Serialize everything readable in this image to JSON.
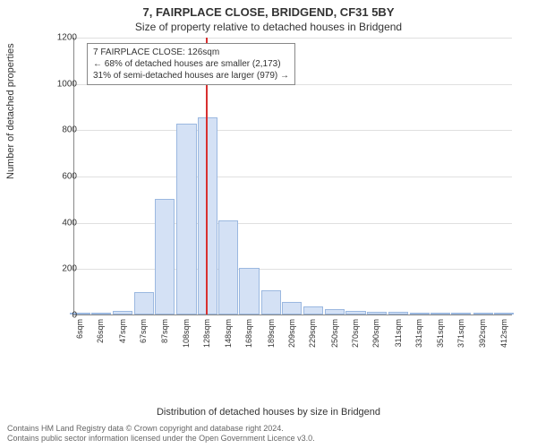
{
  "title_main": "7, FAIRPLACE CLOSE, BRIDGEND, CF31 5BY",
  "title_sub": "Size of property relative to detached houses in Bridgend",
  "y_axis_label": "Number of detached properties",
  "x_axis_label": "Distribution of detached houses by size in Bridgend",
  "annotation": {
    "line1": "7 FAIRPLACE CLOSE: 126sqm",
    "line2": "← 68% of detached houses are smaller (2,173)",
    "line3": "31% of semi-detached houses are larger (979) →"
  },
  "footer_line1": "Contains HM Land Registry data © Crown copyright and database right 2024.",
  "footer_line2": "Contains public sector information licensed under the Open Government Licence v3.0.",
  "chart": {
    "type": "histogram",
    "background_color": "#ffffff",
    "grid_color": "#e0e0e0",
    "axis_color": "#888888",
    "bar_fill": "#d4e1f5",
    "bar_border": "#9bb8e0",
    "marker_color": "#d83030",
    "marker_x_value": 126,
    "ylim": [
      0,
      1200
    ],
    "ytick_step": 200,
    "yticks": [
      0,
      200,
      400,
      600,
      800,
      1000,
      1200
    ],
    "x_tick_labels": [
      "6sqm",
      "26sqm",
      "47sqm",
      "67sqm",
      "87sqm",
      "108sqm",
      "128sqm",
      "148sqm",
      "168sqm",
      "189sqm",
      "209sqm",
      "229sqm",
      "250sqm",
      "270sqm",
      "290sqm",
      "311sqm",
      "331sqm",
      "351sqm",
      "371sqm",
      "392sqm",
      "412sqm"
    ],
    "x_tick_values": [
      6,
      26,
      47,
      67,
      87,
      108,
      128,
      148,
      168,
      189,
      209,
      229,
      250,
      270,
      290,
      311,
      331,
      351,
      371,
      392,
      412
    ],
    "x_range": [
      0,
      420
    ],
    "bar_width_value": 20,
    "bars": [
      {
        "x": 6,
        "y": 3
      },
      {
        "x": 26,
        "y": 8
      },
      {
        "x": 47,
        "y": 15
      },
      {
        "x": 67,
        "y": 95
      },
      {
        "x": 87,
        "y": 500
      },
      {
        "x": 108,
        "y": 825
      },
      {
        "x": 128,
        "y": 850
      },
      {
        "x": 148,
        "y": 405
      },
      {
        "x": 168,
        "y": 200
      },
      {
        "x": 189,
        "y": 105
      },
      {
        "x": 209,
        "y": 55
      },
      {
        "x": 229,
        "y": 35
      },
      {
        "x": 250,
        "y": 25
      },
      {
        "x": 270,
        "y": 15
      },
      {
        "x": 290,
        "y": 12
      },
      {
        "x": 311,
        "y": 10
      },
      {
        "x": 331,
        "y": 6
      },
      {
        "x": 351,
        "y": 4
      },
      {
        "x": 371,
        "y": 4
      },
      {
        "x": 392,
        "y": 3
      },
      {
        "x": 412,
        "y": 3
      }
    ],
    "title_fontsize": 13,
    "subtitle_fontsize": 12,
    "axis_label_fontsize": 11,
    "tick_fontsize": 10,
    "annotation_fontsize": 10
  }
}
